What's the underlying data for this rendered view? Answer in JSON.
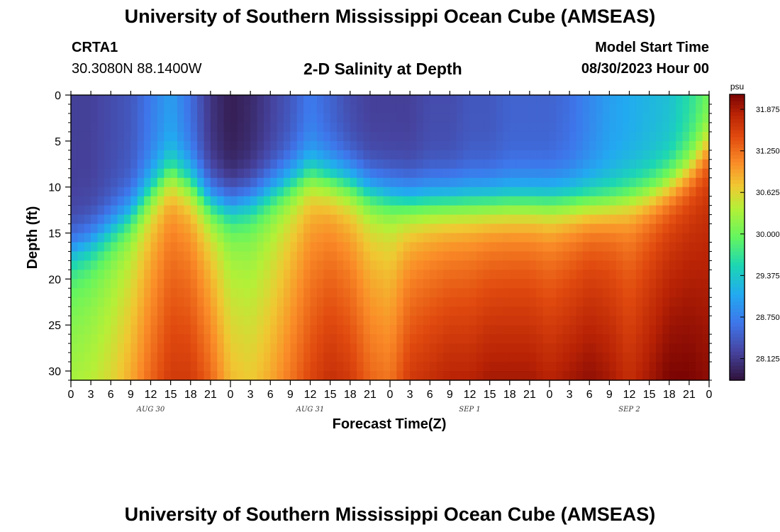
{
  "header": {
    "title": "University of Southern Mississippi Ocean Cube (AMSEAS)",
    "station": "CRTA1",
    "coords": "30.3080N  88.1400W",
    "subtitle": "2-D Salinity at Depth",
    "model_start_label": "Model Start Time",
    "model_start_value": "08/30/2023 Hour 00",
    "footer_title": "University of Southern Mississippi Ocean Cube (AMSEAS)"
  },
  "chart_data": {
    "type": "heatmap",
    "title": "2-D Salinity at Depth",
    "xlabel": "Forecast Time(Z)",
    "ylabel": "Depth (ft)",
    "xlim": [
      0,
      96
    ],
    "ylim": [
      0,
      31
    ],
    "x_tick_labels": [
      "0",
      "3",
      "6",
      "9",
      "12",
      "15",
      "18",
      "21",
      "0",
      "3",
      "6",
      "9",
      "12",
      "15",
      "18",
      "21",
      "0",
      "3",
      "6",
      "9",
      "12",
      "15",
      "18",
      "21",
      "0",
      "3",
      "6",
      "9",
      "12",
      "15",
      "18",
      "21",
      "0"
    ],
    "y_ticks": [
      0,
      5,
      10,
      15,
      20,
      25,
      30
    ],
    "day_labels": [
      {
        "label": "AUG 30",
        "hour": 12
      },
      {
        "label": "AUG 31",
        "hour": 36
      },
      {
        "label": "SEP 1",
        "hour": 60
      },
      {
        "label": "SEP 2",
        "hour": 84
      }
    ],
    "colorbar": {
      "unit": "psu",
      "vmin": 27.8,
      "vmax": 32.1,
      "tick_values": [
        31.875,
        31.25,
        30.625,
        30.0,
        29.375,
        28.75,
        28.125
      ],
      "tick_labels": [
        "31.875",
        "31.250",
        "30.625",
        "30.000",
        "29.375",
        "28.750",
        "28.125"
      ]
    },
    "depth_profile_hours": [
      0,
      3,
      6,
      9,
      12,
      15,
      18,
      21,
      24,
      27,
      30,
      33,
      36,
      39,
      42,
      45,
      48,
      51,
      54,
      57,
      60,
      63,
      66,
      69,
      72,
      75,
      78,
      81,
      84,
      87,
      90,
      93,
      96
    ],
    "fresh_layer_depth_ft": [
      16.5,
      15.5,
      14.0,
      12.5,
      10.0,
      8.0,
      9.0,
      11.0,
      11.5,
      11.0,
      10.0,
      9.0,
      8.0,
      8.5,
      9.0,
      10.0,
      10.5,
      11.0,
      11.0,
      11.0,
      11.0,
      11.0,
      11.0,
      11.0,
      11.0,
      11.0,
      11.0,
      11.0,
      10.5,
      10.0,
      9.0,
      7.5,
      5.0
    ],
    "surface_salinity_psu": [
      28.2,
      28.2,
      28.3,
      28.4,
      28.7,
      29.0,
      28.6,
      28.1,
      27.9,
      28.0,
      28.2,
      28.4,
      28.7,
      28.5,
      28.3,
      28.2,
      28.2,
      28.2,
      28.3,
      28.3,
      28.4,
      28.4,
      28.5,
      28.5,
      28.5,
      28.6,
      28.8,
      29.0,
      29.1,
      29.2,
      29.3,
      29.6,
      30.0
    ],
    "bottom_salinity_psu": [
      30.3,
      30.4,
      30.6,
      30.9,
      31.3,
      31.6,
      31.6,
      31.3,
      30.8,
      30.7,
      30.9,
      31.2,
      31.5,
      31.7,
      31.6,
      31.3,
      31.2,
      31.6,
      31.7,
      31.8,
      31.8,
      31.9,
      31.9,
      31.9,
      31.8,
      31.9,
      32.0,
      31.9,
      31.7,
      31.9,
      32.1,
      32.1,
      32.0
    ]
  }
}
